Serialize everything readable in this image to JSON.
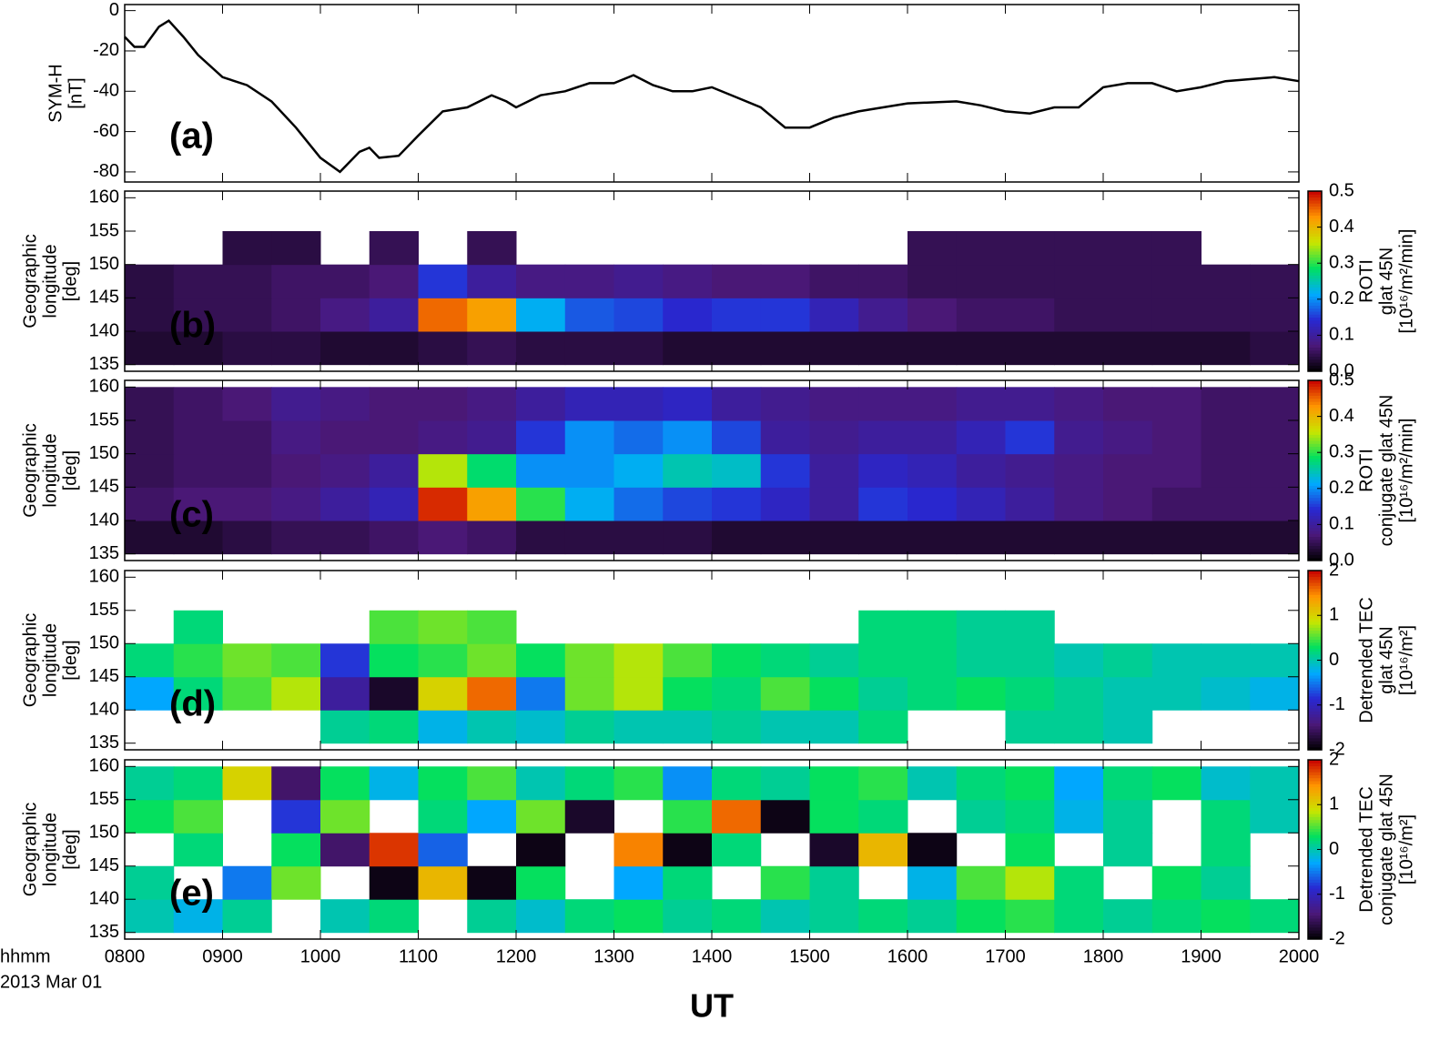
{
  "chart_data": [
    {
      "type": "line",
      "panel_label": "(a)",
      "panel_label_color": "#000000",
      "ylabel": [
        "SYM-H",
        "[nT]"
      ],
      "color": "#000000",
      "xlim": [
        8,
        20
      ],
      "ylim": [
        -85,
        3
      ],
      "yticks": [
        -80,
        -60,
        -40,
        -20,
        0
      ],
      "x": [
        8.0,
        8.1,
        8.2,
        8.35,
        8.45,
        8.6,
        8.75,
        9.0,
        9.25,
        9.5,
        9.75,
        10.0,
        10.2,
        10.4,
        10.5,
        10.6,
        10.8,
        11.0,
        11.25,
        11.5,
        11.75,
        11.9,
        12.0,
        12.25,
        12.5,
        12.75,
        13.0,
        13.2,
        13.4,
        13.6,
        13.8,
        14.0,
        14.25,
        14.5,
        14.75,
        15.0,
        15.25,
        15.5,
        15.75,
        16.0,
        16.5,
        16.75,
        17.0,
        17.25,
        17.5,
        17.75,
        18.0,
        18.25,
        18.5,
        18.75,
        19.0,
        19.25,
        19.5,
        19.75,
        20.0
      ],
      "values": [
        -13,
        -18,
        -18,
        -8,
        -5,
        -13,
        -22,
        -33,
        -37,
        -45,
        -58,
        -73,
        -80,
        -70,
        -68,
        -73,
        -72,
        -62,
        -50,
        -48,
        -42,
        -45,
        -48,
        -42,
        -40,
        -36,
        -36,
        -32,
        -37,
        -40,
        -40,
        -38,
        -43,
        -48,
        -58,
        -58,
        -53,
        -50,
        -48,
        -46,
        -45,
        -47,
        -50,
        -51,
        -48,
        -48,
        -38,
        -36,
        -36,
        -40,
        -38,
        -35,
        -34,
        -33,
        -35
      ]
    },
    {
      "type": "heatmap",
      "panel_label": "(b)",
      "panel_label_color": "#000000",
      "ylabel": [
        "Geographic",
        "longitude",
        "[deg]"
      ],
      "colorbar_label": [
        "ROTI",
        "glat 45N",
        "[10¹⁶/m²/min]"
      ],
      "colormap": [
        "#000000",
        "#4b1878",
        "#2828d2",
        "#00aaff",
        "#00e060",
        "#c8e600",
        "#ff9600",
        "#c80000"
      ],
      "xlim": [
        8,
        20
      ],
      "ylim": [
        134,
        161
      ],
      "yticks": [
        135,
        140,
        145,
        150,
        155,
        160
      ],
      "zlim": [
        0,
        0.5
      ],
      "zticks": [
        {
          "value": 0,
          "label": "0.0"
        },
        0.1,
        0.2,
        0.3,
        0.4,
        0.5
      ],
      "x": [
        8.25,
        8.75,
        9.25,
        9.75,
        10.25,
        10.75,
        11.25,
        11.75,
        12.25,
        12.75,
        13.25,
        13.75,
        14.25,
        14.75,
        15.25,
        15.75,
        16.25,
        16.75,
        17.25,
        17.75,
        18.25,
        18.75,
        19.25,
        19.75
      ],
      "y": [
        137.5,
        142.5,
        147.5,
        152.5,
        157.5
      ],
      "z": [
        [
          0.03,
          0.03,
          0.04,
          0.04,
          0.03,
          0.03,
          0.04,
          0.05,
          0.04,
          0.04,
          0.04,
          0.03,
          0.03,
          0.03,
          0.03,
          0.03,
          0.03,
          0.03,
          0.03,
          0.03,
          0.03,
          0.03,
          0.03,
          0.04
        ],
        [
          0.04,
          0.05,
          0.05,
          0.06,
          0.08,
          0.1,
          0.45,
          0.42,
          0.22,
          0.17,
          0.16,
          0.14,
          0.15,
          0.15,
          0.12,
          0.09,
          0.07,
          0.06,
          0.06,
          0.05,
          0.05,
          0.05,
          0.05,
          0.05
        ],
        [
          0.04,
          0.05,
          0.05,
          0.06,
          0.06,
          0.07,
          0.15,
          0.1,
          0.08,
          0.08,
          0.09,
          0.08,
          0.07,
          0.07,
          0.06,
          0.06,
          0.05,
          0.05,
          0.05,
          0.05,
          0.05,
          0.05,
          0.05,
          0.05
        ],
        [
          null,
          null,
          0.04,
          0.04,
          null,
          0.05,
          null,
          0.05,
          null,
          null,
          null,
          null,
          null,
          null,
          null,
          null,
          0.05,
          0.05,
          0.05,
          0.05,
          0.05,
          0.05,
          null,
          null
        ],
        [
          null,
          null,
          null,
          null,
          null,
          null,
          null,
          null,
          null,
          null,
          null,
          null,
          null,
          null,
          null,
          null,
          null,
          null,
          null,
          null,
          null,
          null,
          null,
          null
        ]
      ]
    },
    {
      "type": "heatmap",
      "panel_label": "(c)",
      "panel_label_color": "#ffffff",
      "ylabel": [
        "Geographic",
        "longitude",
        "[deg]"
      ],
      "colorbar_label": [
        "ROTI",
        "conjugate glat 45N",
        "[10¹⁶/m²/min]"
      ],
      "colormap": [
        "#000000",
        "#4b1878",
        "#2828d2",
        "#00aaff",
        "#00e060",
        "#c8e600",
        "#ff9600",
        "#c80000"
      ],
      "xlim": [
        8,
        20
      ],
      "ylim": [
        134,
        161
      ],
      "yticks": [
        135,
        140,
        145,
        150,
        155,
        160
      ],
      "zlim": [
        0,
        0.5
      ],
      "zticks": [
        {
          "value": 0,
          "label": "0.0"
        },
        0.1,
        0.2,
        0.3,
        0.4,
        0.5
      ],
      "x": [
        8.25,
        8.75,
        9.25,
        9.75,
        10.25,
        10.75,
        11.25,
        11.75,
        12.25,
        12.75,
        13.25,
        13.75,
        14.25,
        14.75,
        15.25,
        15.75,
        16.25,
        16.75,
        17.25,
        17.75,
        18.25,
        18.75,
        19.25,
        19.75
      ],
      "y": [
        137.5,
        142.5,
        147.5,
        152.5,
        157.5
      ],
      "z": [
        [
          0.03,
          0.03,
          0.04,
          0.05,
          0.05,
          0.06,
          0.07,
          0.06,
          0.04,
          0.04,
          0.04,
          0.04,
          0.03,
          0.03,
          0.03,
          0.03,
          0.03,
          0.03,
          0.03,
          0.03,
          0.03,
          0.03,
          0.03,
          0.03
        ],
        [
          0.06,
          0.07,
          0.07,
          0.08,
          0.1,
          0.12,
          0.48,
          0.42,
          0.3,
          0.22,
          0.18,
          0.16,
          0.15,
          0.13,
          0.1,
          0.15,
          0.14,
          0.12,
          0.1,
          0.08,
          0.07,
          0.06,
          0.06,
          0.06
        ],
        [
          0.05,
          0.06,
          0.06,
          0.07,
          0.08,
          0.1,
          0.35,
          0.28,
          0.2,
          0.2,
          0.22,
          0.25,
          0.24,
          0.15,
          0.1,
          0.13,
          0.12,
          0.1,
          0.09,
          0.08,
          0.07,
          0.07,
          0.06,
          0.06
        ],
        [
          0.05,
          0.06,
          0.06,
          0.08,
          0.07,
          0.07,
          0.08,
          0.09,
          0.15,
          0.2,
          0.18,
          0.2,
          0.16,
          0.1,
          0.09,
          0.1,
          0.1,
          0.12,
          0.15,
          0.09,
          0.08,
          0.07,
          0.06,
          0.06
        ],
        [
          0.05,
          0.06,
          0.07,
          0.09,
          0.08,
          0.07,
          0.07,
          0.08,
          0.1,
          0.12,
          0.12,
          0.13,
          0.1,
          0.09,
          0.08,
          0.08,
          0.08,
          0.09,
          0.09,
          0.08,
          0.07,
          0.07,
          0.06,
          0.06
        ]
      ]
    },
    {
      "type": "heatmap",
      "panel_label": "(d)",
      "panel_label_color": "#000000",
      "ylabel": [
        "Geographic",
        "longitude",
        "[deg]"
      ],
      "colorbar_label": [
        "Detrended TEC",
        "glat 45N",
        "[10¹⁶/m²]"
      ],
      "colormap": [
        "#000000",
        "#4b1878",
        "#2828d2",
        "#00aaff",
        "#00e060",
        "#c8e600",
        "#ff9600",
        "#c80000"
      ],
      "xlim": [
        8,
        20
      ],
      "ylim": [
        134,
        161
      ],
      "yticks": [
        135,
        140,
        145,
        150,
        155,
        160
      ],
      "zlim": [
        -2,
        2
      ],
      "zticks": [
        -2,
        -1,
        0,
        1,
        2
      ],
      "x": [
        8.25,
        8.75,
        9.25,
        9.75,
        10.25,
        10.75,
        11.25,
        11.75,
        12.25,
        12.75,
        13.25,
        13.75,
        14.25,
        14.75,
        15.25,
        15.75,
        16.25,
        16.75,
        17.25,
        17.75,
        18.25,
        18.75,
        19.25,
        19.75
      ],
      "y": [
        137.5,
        142.5,
        147.5,
        152.5,
        157.5
      ],
      "z": [
        [
          null,
          null,
          null,
          null,
          0.1,
          0.2,
          -0.2,
          0.0,
          -0.1,
          0.1,
          0.0,
          0.0,
          0.1,
          0.0,
          0.0,
          0.2,
          null,
          null,
          0.1,
          0.1,
          0.0,
          null,
          null,
          null
        ],
        [
          -0.3,
          0.2,
          0.5,
          0.8,
          -1.2,
          -1.8,
          1.0,
          1.6,
          -0.5,
          0.6,
          0.8,
          0.3,
          0.2,
          0.5,
          0.3,
          0.1,
          0.2,
          0.3,
          0.2,
          0.1,
          0.0,
          0.0,
          -0.1,
          -0.2
        ],
        [
          0.2,
          0.4,
          0.6,
          0.5,
          -0.8,
          0.3,
          0.4,
          0.6,
          0.3,
          0.6,
          0.8,
          0.5,
          0.3,
          0.2,
          0.1,
          0.2,
          0.2,
          0.1,
          0.1,
          0.0,
          0.1,
          0.0,
          0.0,
          0.0
        ],
        [
          null,
          0.2,
          null,
          null,
          null,
          0.5,
          0.6,
          0.5,
          null,
          null,
          null,
          null,
          null,
          null,
          null,
          0.2,
          0.2,
          0.1,
          0.1,
          null,
          null,
          null,
          null,
          null
        ],
        [
          null,
          null,
          null,
          null,
          null,
          null,
          null,
          null,
          null,
          null,
          null,
          null,
          null,
          null,
          null,
          null,
          null,
          null,
          null,
          null,
          null,
          null,
          null,
          null
        ]
      ]
    },
    {
      "type": "heatmap",
      "panel_label": "(e)",
      "panel_label_color": "#000000",
      "ylabel": [
        "Geographic",
        "longitude",
        "[deg]"
      ],
      "colorbar_label": [
        "Detrended TEC",
        "conjugate glat 45N",
        "[10¹⁶/m²]"
      ],
      "colormap": [
        "#000000",
        "#4b1878",
        "#2828d2",
        "#00aaff",
        "#00e060",
        "#c8e600",
        "#ff9600",
        "#c80000"
      ],
      "xlim": [
        8,
        20
      ],
      "ylim": [
        134,
        161
      ],
      "yticks": [
        135,
        140,
        145,
        150,
        155,
        160
      ],
      "zlim": [
        -2,
        2
      ],
      "zticks": [
        -2,
        -1,
        0,
        1,
        2
      ],
      "xticks": [
        {
          "value": 8,
          "label": "0800"
        },
        {
          "value": 9,
          "label": "0900"
        },
        {
          "value": 10,
          "label": "1000"
        },
        {
          "value": 11,
          "label": "1100"
        },
        {
          "value": 12,
          "label": "1200"
        },
        {
          "value": 13,
          "label": "1300"
        },
        {
          "value": 14,
          "label": "1400"
        },
        {
          "value": 15,
          "label": "1500"
        },
        {
          "value": 16,
          "label": "1600"
        },
        {
          "value": 17,
          "label": "1700"
        },
        {
          "value": 18,
          "label": "1800"
        },
        {
          "value": 19,
          "label": "1900"
        },
        {
          "value": 20,
          "label": "2000"
        }
      ],
      "x_format": "hhmm",
      "date": "2013 Mar 01",
      "xlabel": "UT",
      "x": [
        8.25,
        8.75,
        9.25,
        9.75,
        10.25,
        10.75,
        11.25,
        11.75,
        12.25,
        12.75,
        13.25,
        13.75,
        14.25,
        14.75,
        15.25,
        15.75,
        16.25,
        16.75,
        17.25,
        17.75,
        18.25,
        18.75,
        19.25,
        19.75
      ],
      "y": [
        137.5,
        142.5,
        147.5,
        152.5,
        157.5
      ],
      "z": [
        [
          0.0,
          -0.2,
          0.1,
          null,
          0.0,
          0.2,
          null,
          0.1,
          -0.1,
          0.2,
          0.3,
          0.1,
          0.2,
          0.0,
          0.1,
          0.2,
          0.1,
          0.3,
          0.4,
          0.2,
          0.1,
          0.2,
          0.3,
          0.2
        ],
        [
          0.1,
          null,
          -0.5,
          0.6,
          null,
          -1.9,
          1.2,
          -1.9,
          0.3,
          null,
          -0.3,
          0.2,
          null,
          0.4,
          0.1,
          null,
          -0.2,
          0.5,
          0.8,
          0.2,
          null,
          0.3,
          0.1,
          null
        ],
        [
          null,
          0.2,
          null,
          0.3,
          -1.5,
          1.8,
          -0.6,
          null,
          -1.9,
          null,
          1.5,
          -1.9,
          0.2,
          null,
          -1.8,
          1.2,
          -1.9,
          null,
          0.3,
          null,
          0.1,
          null,
          0.2,
          null
        ],
        [
          0.3,
          0.5,
          null,
          -0.8,
          0.6,
          null,
          0.2,
          -0.3,
          0.6,
          -1.8,
          null,
          0.4,
          1.6,
          -1.9,
          0.3,
          0.2,
          null,
          0.1,
          0.2,
          -0.2,
          0.1,
          null,
          0.2,
          0.0
        ],
        [
          0.1,
          0.2,
          1.0,
          -1.5,
          0.3,
          -0.2,
          0.3,
          0.5,
          0.0,
          0.2,
          0.4,
          -0.4,
          0.2,
          0.1,
          0.3,
          0.4,
          0.0,
          0.2,
          0.3,
          -0.3,
          0.2,
          0.3,
          -0.1,
          0.0
        ]
      ]
    }
  ]
}
